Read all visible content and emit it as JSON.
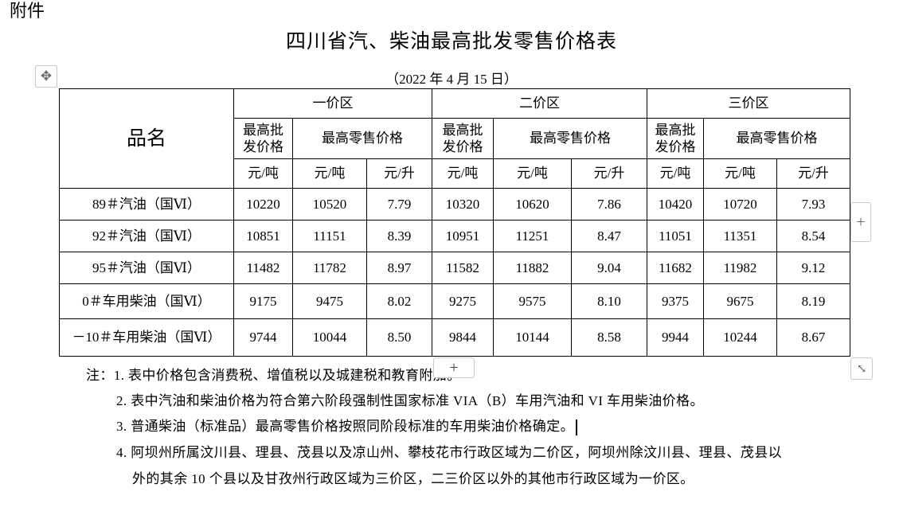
{
  "attachment_label": "附件",
  "title": "四川省汽、柴油最高批发零售价格表",
  "date": "（2022 年 4 月 15 日）",
  "table": {
    "name_header": "品名",
    "zones": [
      "一价区",
      "二价区",
      "三价区"
    ],
    "wholesale_header": "最高批发价格",
    "wholesale_header_line1": "最高批",
    "wholesale_header_line2": "发价格",
    "retail_header": "最高零售价格",
    "unit_ton": "元/吨",
    "unit_liter": "元/升",
    "rows": [
      {
        "product": "89＃汽油（国Ⅵ）",
        "values": [
          "10220",
          "10520",
          "7.79",
          "10320",
          "10620",
          "7.86",
          "10420",
          "10720",
          "7.93"
        ]
      },
      {
        "product": "92＃汽油（国Ⅵ）",
        "values": [
          "10851",
          "11151",
          "8.39",
          "10951",
          "11251",
          "8.47",
          "11051",
          "11351",
          "8.54"
        ]
      },
      {
        "product": "95＃汽油（国Ⅵ）",
        "values": [
          "11482",
          "11782",
          "8.97",
          "11582",
          "11882",
          "9.04",
          "11682",
          "11982",
          "9.12"
        ]
      },
      {
        "product": "0＃车用柴油（国Ⅵ）",
        "values": [
          "9175",
          "9475",
          "8.02",
          "9275",
          "9575",
          "8.10",
          "9375",
          "9675",
          "8.19"
        ]
      },
      {
        "product": "－10＃车用柴油（国Ⅵ）",
        "values": [
          "9744",
          "10044",
          "8.50",
          "9844",
          "10144",
          "8.58",
          "9944",
          "10244",
          "8.67"
        ]
      }
    ]
  },
  "notes": {
    "prefix": "注：",
    "n1": "1. 表中价格包含消费税、增值税以及城建税和教育附加。",
    "n2": "2. 表中汽油和柴油价格为符合第六阶段强制性国家标准 VIA（B）车用汽油和 VI 车用柴油价格。",
    "n3": "3. 普通柴油（标准品）最高零售价格按照同阶段标准的车用柴油价格确定。",
    "n4_line1": "4. 阿坝州所属汶川县、理县、茂县以及凉山州、攀枝花市行政区域为二价区，阿坝州除汶川县、理县、茂县以",
    "n4_line2": "外的其余 10 个县以及甘孜州行政区域为三价区，二三价区以外的其他市行政区域为一价区。"
  },
  "icons": {
    "move": "move-arrows-icon",
    "add_column": "plus-icon",
    "add_row": "plus-icon",
    "resize": "resize-diagonal-icon"
  }
}
